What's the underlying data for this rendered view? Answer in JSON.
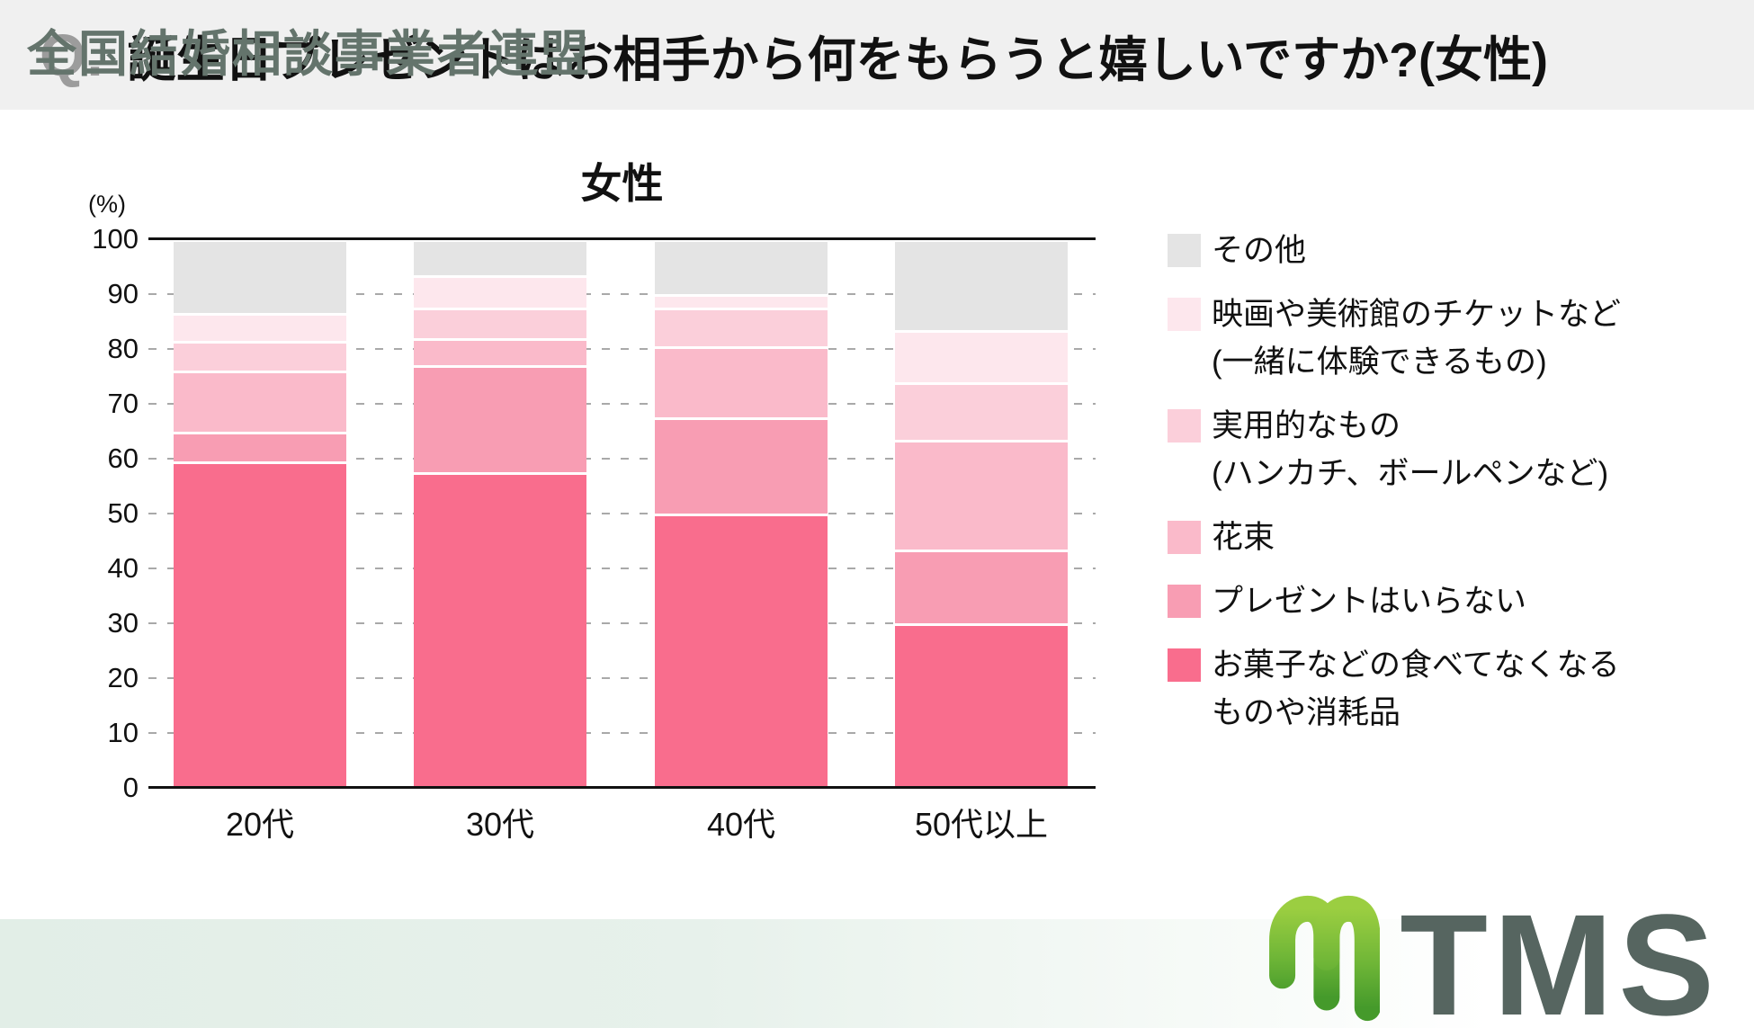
{
  "header": {
    "q_label": "Q.",
    "title": "誕生日プレゼントはお相手から何をもらうと嬉しいですか?(女性)"
  },
  "chart": {
    "title": "女性",
    "unit_label": "(%)",
    "y_ticks": [
      100,
      90,
      80,
      70,
      60,
      50,
      40,
      30,
      20,
      10,
      0
    ]
  },
  "chart_data": {
    "type": "bar",
    "stacked": true,
    "title": "女性",
    "ylabel": "(%)",
    "ylim": [
      0,
      100
    ],
    "grid": "dashed-horizontal",
    "legend_position": "right",
    "categories": [
      "20代",
      "30代",
      "40代",
      "50代以上"
    ],
    "series": [
      {
        "name": "お菓子などの食べてなくなるものや消耗品",
        "color": "#F96D8D",
        "values": [
          59.5,
          57.5,
          50,
          30
        ]
      },
      {
        "name": "プレゼントはいらない",
        "color": "#F89DB3",
        "values": [
          5.5,
          19.5,
          17.5,
          13.5
        ]
      },
      {
        "name": "花束",
        "color": "#FABACA",
        "values": [
          11,
          5,
          13,
          20
        ]
      },
      {
        "name": "実用的なもの(ハンカチ、ボールペンなど)",
        "color": "#FBCFDA",
        "values": [
          5.5,
          5.5,
          7,
          10.5
        ]
      },
      {
        "name": "映画や美術館のチケットなど(一緒に体験できるもの)",
        "color": "#FDE7ED",
        "values": [
          5,
          6,
          2.5,
          9.5
        ]
      },
      {
        "name": "その他",
        "color": "#E4E4E4",
        "values": [
          13.5,
          6.5,
          10,
          16.5
        ]
      }
    ]
  },
  "legend": {
    "items": [
      {
        "color": "#E4E4E4",
        "label_lines": [
          "その他"
        ]
      },
      {
        "color": "#FDE7ED",
        "label_lines": [
          "映画や美術館のチケットなど",
          "(一緒に体験できるもの)"
        ]
      },
      {
        "color": "#FBCFDA",
        "label_lines": [
          "実用的なもの",
          "(ハンカチ、ボールペンなど)"
        ]
      },
      {
        "color": "#FABACA",
        "label_lines": [
          "花束"
        ]
      },
      {
        "color": "#F89DB3",
        "label_lines": [
          "プレゼントはいらない"
        ]
      },
      {
        "color": "#F96D8D",
        "label_lines": [
          "お菓子などの食べてなくなる",
          "ものや消耗品"
        ]
      }
    ]
  },
  "footer": {
    "org": "全国結婚相談事業者連盟",
    "logo_text": "TMS"
  }
}
